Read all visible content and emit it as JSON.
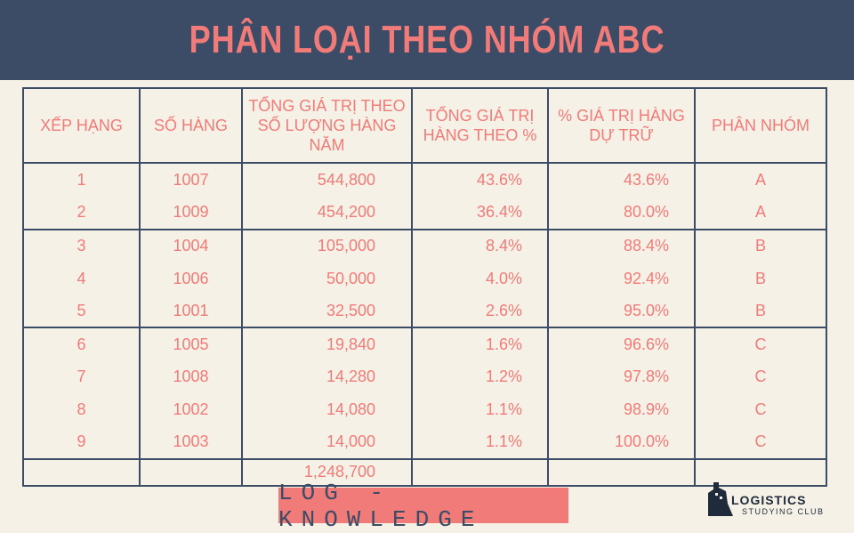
{
  "title": "PHÂN LOẠI THEO NHÓM ABC",
  "table": {
    "headers": {
      "rank": "XẾP HẠNG",
      "item": "SỐ HÀNG",
      "value": "TỔNG GIÁ TRỊ THEO SỐ LƯỢNG HÀNG NĂM",
      "pct": "TỔNG GIÁ TRỊ HÀNG THEO %",
      "cum": "% GIÁ TRỊ HÀNG DỰ TRỮ",
      "grp": "PHÂN NHÓM"
    },
    "rows": [
      {
        "rank": "1",
        "item": "1007",
        "value": "544,800",
        "pct": "43.6%",
        "cum": "43.6%",
        "grp": "A"
      },
      {
        "rank": "2",
        "item": "1009",
        "value": "454,200",
        "pct": "36.4%",
        "cum": "80.0%",
        "grp": "A"
      },
      {
        "rank": "3",
        "item": "1004",
        "value": "105,000",
        "pct": "8.4%",
        "cum": "88.4%",
        "grp": "B"
      },
      {
        "rank": "4",
        "item": "1006",
        "value": "50,000",
        "pct": "4.0%",
        "cum": "92.4%",
        "grp": "B"
      },
      {
        "rank": "5",
        "item": "1001",
        "value": "32,500",
        "pct": "2.6%",
        "cum": "95.0%",
        "grp": "B"
      },
      {
        "rank": "6",
        "item": "1005",
        "value": "19,840",
        "pct": "1.6%",
        "cum": "96.6%",
        "grp": "C"
      },
      {
        "rank": "7",
        "item": "1008",
        "value": "14,280",
        "pct": "1.2%",
        "cum": "97.8%",
        "grp": "C"
      },
      {
        "rank": "8",
        "item": "1002",
        "value": "14,080",
        "pct": "1.1%",
        "cum": "98.9%",
        "grp": "C"
      },
      {
        "rank": "9",
        "item": "1003",
        "value": "14,000",
        "pct": "1.1%",
        "cum": "100.0%",
        "grp": "C"
      }
    ],
    "total": "1,248,700"
  },
  "footer": {
    "badge": "LOG - KNOWLEDGE",
    "logo_word": "LOGISTICS",
    "logo_sub": "STUDYING CLUB",
    "logo_icon": "ship-icon"
  },
  "colors": {
    "header_bg": "#3d4c66",
    "accent": "#f07b78",
    "page_bg": "#f6f1e6"
  }
}
